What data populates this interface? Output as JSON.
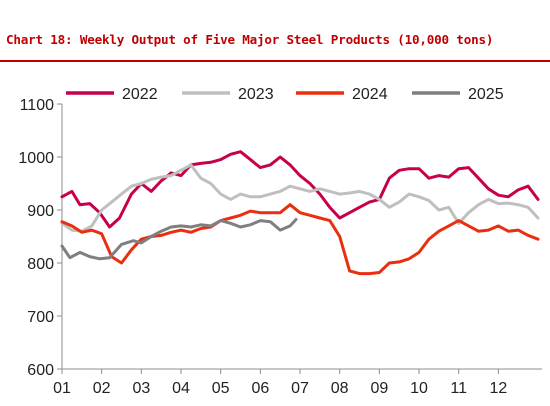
{
  "title": "Chart 18: Weekly Output of Five Major Steel Products (10,000 tons)",
  "colors": {
    "title": "#c00000",
    "rule": "#c00000",
    "axis": "#8c8c8c"
  },
  "chart_data": {
    "type": "line",
    "xlabel": "",
    "ylabel": "",
    "ylim": [
      600,
      1100
    ],
    "yticks": [
      600,
      700,
      800,
      900,
      1000,
      1100
    ],
    "xlim": [
      1,
      13.1
    ],
    "xticks": [
      "01",
      "02",
      "03",
      "04",
      "05",
      "06",
      "07",
      "08",
      "09",
      "10",
      "11",
      "12"
    ],
    "grid": false,
    "legend": "top",
    "series": [
      {
        "name": "2022",
        "color": "#c8004b",
        "x": [
          1,
          1.25,
          1.45,
          1.7,
          1.95,
          2.2,
          2.45,
          2.75,
          3.0,
          3.25,
          3.5,
          3.75,
          4.0,
          4.25,
          4.5,
          4.75,
          5.0,
          5.25,
          5.5,
          5.75,
          6.0,
          6.25,
          6.5,
          6.75,
          7.0,
          7.25,
          7.5,
          7.75,
          8.0,
          8.25,
          8.5,
          8.75,
          9.0,
          9.25,
          9.5,
          9.75,
          10.0,
          10.25,
          10.5,
          10.75,
          11.0,
          11.25,
          11.5,
          11.75,
          12.0,
          12.25,
          12.5,
          12.75,
          13.0
        ],
        "values": [
          925,
          935,
          910,
          912,
          895,
          868,
          885,
          930,
          950,
          935,
          955,
          970,
          965,
          985,
          988,
          990,
          995,
          1005,
          1010,
          995,
          980,
          985,
          1000,
          985,
          965,
          950,
          930,
          905,
          885,
          895,
          905,
          915,
          920,
          960,
          975,
          978,
          978,
          960,
          965,
          962,
          978,
          980,
          960,
          940,
          928,
          925,
          938,
          945,
          920
        ]
      },
      {
        "name": "2023",
        "color": "#bfbfbf",
        "x": [
          1,
          1.25,
          1.5,
          1.75,
          2.0,
          2.25,
          2.5,
          2.75,
          3.0,
          3.25,
          3.5,
          3.75,
          4.0,
          4.25,
          4.5,
          4.75,
          5.0,
          5.25,
          5.5,
          5.75,
          6.0,
          6.25,
          6.5,
          6.75,
          7.0,
          7.25,
          7.5,
          7.75,
          8.0,
          8.25,
          8.5,
          8.75,
          9.0,
          9.25,
          9.5,
          9.75,
          10.0,
          10.25,
          10.5,
          10.75,
          11.0,
          11.25,
          11.5,
          11.75,
          12.0,
          12.25,
          12.5,
          12.75,
          13.0
        ],
        "values": [
          875,
          862,
          860,
          870,
          900,
          915,
          930,
          945,
          950,
          958,
          962,
          965,
          975,
          985,
          960,
          950,
          930,
          920,
          930,
          925,
          925,
          930,
          935,
          945,
          940,
          935,
          940,
          935,
          930,
          932,
          935,
          930,
          920,
          905,
          915,
          930,
          925,
          918,
          900,
          905,
          875,
          895,
          910,
          920,
          912,
          913,
          910,
          905,
          885
        ]
      },
      {
        "name": "2024",
        "color": "#e8300f",
        "x": [
          1,
          1.25,
          1.5,
          1.75,
          2.0,
          2.25,
          2.5,
          2.75,
          3.0,
          3.25,
          3.5,
          3.75,
          4.0,
          4.25,
          4.5,
          4.75,
          5.0,
          5.25,
          5.5,
          5.75,
          6.0,
          6.25,
          6.5,
          6.75,
          7.0,
          7.25,
          7.5,
          7.75,
          8.0,
          8.25,
          8.5,
          8.75,
          9.0,
          9.25,
          9.5,
          9.75,
          10.0,
          10.25,
          10.5,
          10.75,
          11.0,
          11.25,
          11.5,
          11.75,
          12.0,
          12.25,
          12.5,
          12.75,
          13.0
        ],
        "values": [
          878,
          870,
          858,
          862,
          855,
          812,
          800,
          825,
          845,
          850,
          852,
          858,
          862,
          858,
          865,
          868,
          880,
          885,
          890,
          898,
          895,
          895,
          895,
          910,
          895,
          890,
          885,
          880,
          850,
          785,
          780,
          780,
          782,
          800,
          802,
          808,
          820,
          845,
          860,
          870,
          880,
          870,
          860,
          862,
          870,
          860,
          862,
          852,
          845
        ]
      },
      {
        "name": "2025",
        "color": "#7f7f7f",
        "x": [
          1,
          1.2,
          1.45,
          1.7,
          1.95,
          2.2,
          2.5,
          2.8,
          3.0,
          3.25,
          3.5,
          3.75,
          4.0,
          4.25,
          4.5,
          4.75,
          5.0,
          5.25,
          5.5,
          5.75,
          6.0,
          6.25,
          6.5,
          6.75,
          6.9
        ],
        "values": [
          832,
          810,
          820,
          812,
          808,
          810,
          835,
          842,
          838,
          850,
          860,
          868,
          870,
          868,
          872,
          870,
          880,
          875,
          868,
          872,
          880,
          878,
          862,
          870,
          882
        ]
      }
    ]
  }
}
